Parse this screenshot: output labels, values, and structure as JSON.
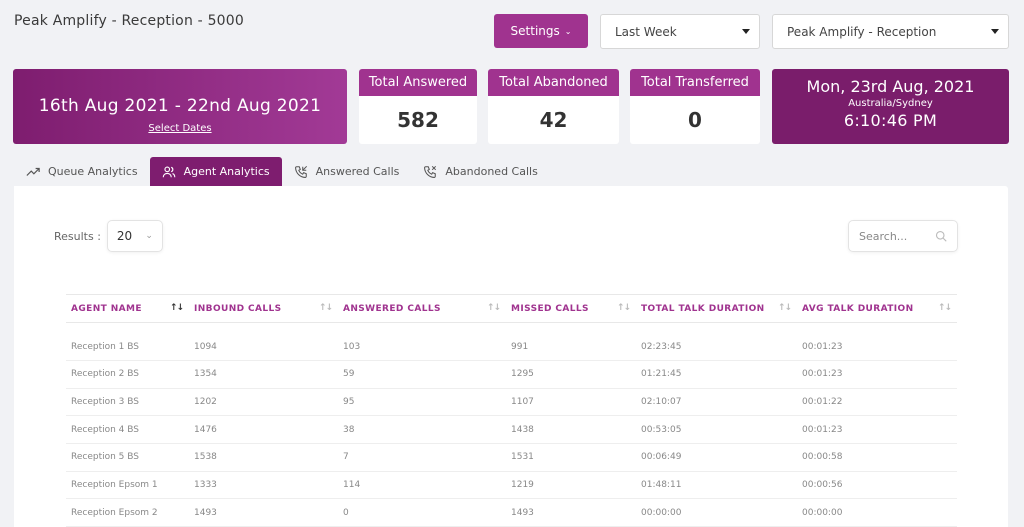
{
  "header": {
    "title": "Peak Amplify - Reception  - 5000"
  },
  "toolbar": {
    "settings_label": "Settings",
    "range_value": "Last Week",
    "queue_value": "Peak Amplify - Reception"
  },
  "date_card": {
    "range": "16th Aug 2021 - 22nd Aug 2021",
    "select_label": "Select Dates"
  },
  "stats": {
    "answered": {
      "label": "Total Answered",
      "value": "582"
    },
    "abandoned": {
      "label": "Total Abandoned",
      "value": "42"
    },
    "transferred": {
      "label": "Total Transferred",
      "value": "0"
    }
  },
  "clock": {
    "date": "Mon, 23rd Aug, 2021",
    "timezone": "Australia/Sydney",
    "time": "6:10:46 PM"
  },
  "tabs": [
    {
      "label": "Queue Analytics",
      "icon": "trend-icon"
    },
    {
      "label": "Agent Analytics",
      "icon": "users-icon"
    },
    {
      "label": "Answered Calls",
      "icon": "phone-incoming-icon"
    },
    {
      "label": "Abandoned Calls",
      "icon": "phone-missed-icon"
    }
  ],
  "results": {
    "label": "Results :",
    "value": "20"
  },
  "search": {
    "placeholder": "Search..."
  },
  "table": {
    "columns": [
      "AGENT NAME",
      "INBOUND CALLS",
      "ANSWERED CALLS",
      "MISSED CALLS",
      "TOTAL TALK DURATION",
      "AVG TALK DURATION"
    ],
    "rows": [
      [
        "Reception 1 BS",
        "1094",
        "103",
        "991",
        "02:23:45",
        "00:01:23"
      ],
      [
        "Reception 2 BS",
        "1354",
        "59",
        "1295",
        "01:21:45",
        "00:01:23"
      ],
      [
        "Reception 3 BS",
        "1202",
        "95",
        "1107",
        "02:10:07",
        "00:01:22"
      ],
      [
        "Reception 4 BS",
        "1476",
        "38",
        "1438",
        "00:53:05",
        "00:01:23"
      ],
      [
        "Reception 5 BS",
        "1538",
        "7",
        "1531",
        "00:06:49",
        "00:00:58"
      ],
      [
        "Reception Epsom 1",
        "1333",
        "114",
        "1219",
        "01:48:11",
        "00:00:56"
      ],
      [
        "Reception Epsom 2",
        "1493",
        "0",
        "1493",
        "00:00:00",
        "00:00:00"
      ]
    ]
  },
  "colors": {
    "accent": "#a0338f",
    "dark": "#7a1d6b",
    "background": "#f1f2f5"
  }
}
